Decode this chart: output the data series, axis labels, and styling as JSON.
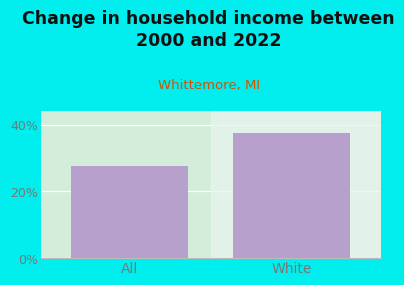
{
  "title": "Change in household income between\n2000 and 2022",
  "subtitle": "Whittemore, MI",
  "categories": [
    "All",
    "White"
  ],
  "values": [
    27.5,
    37.5
  ],
  "bar_color": "#b8a0cc",
  "background_outer": "#00EEEE",
  "background_plot": "#d4edda",
  "background_right_strip": "#eef8f0",
  "title_fontsize": 12.5,
  "subtitle_fontsize": 9.5,
  "subtitle_color": "#cc5500",
  "tick_label_color": "#777777",
  "yticks": [
    0,
    20,
    40
  ],
  "ylim": [
    0,
    44
  ],
  "bar_width": 0.72
}
